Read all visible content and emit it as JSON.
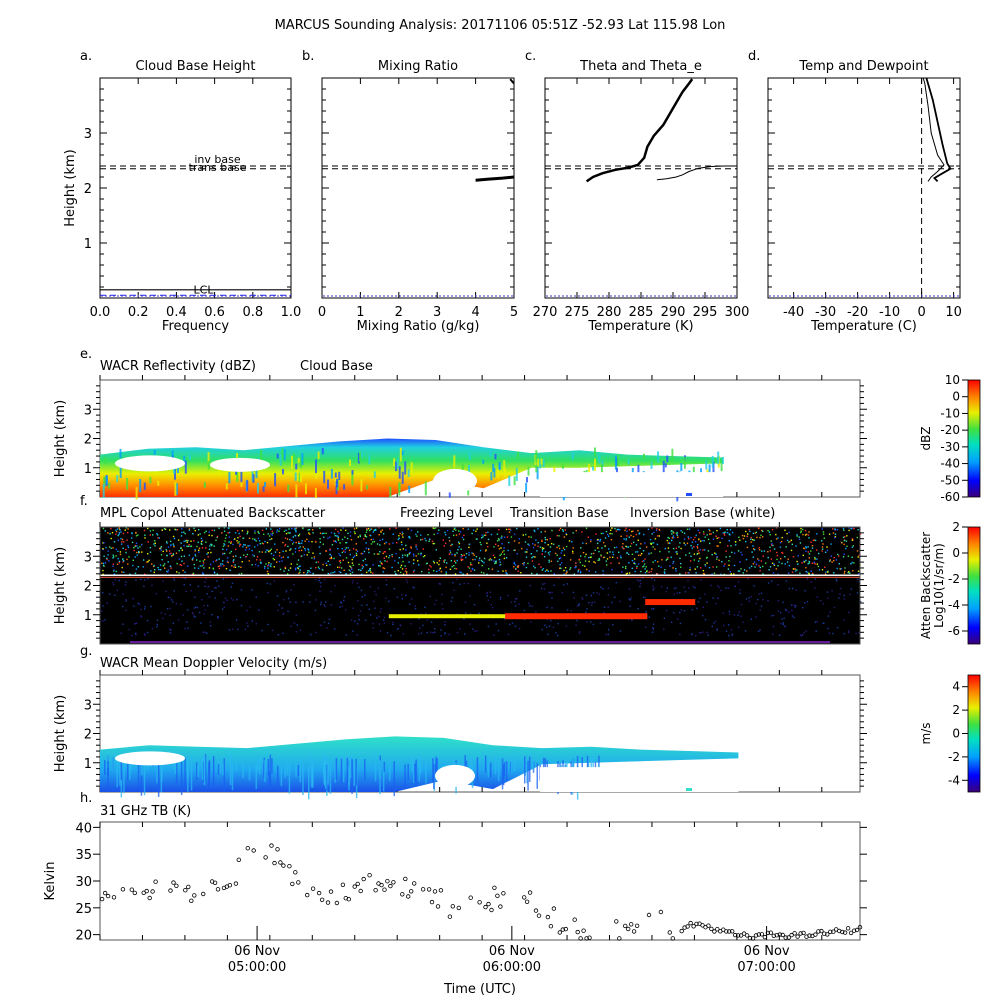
{
  "figure": {
    "title": "MARCUS Sounding Analysis: 20171106 05:51Z   -52.93 Lat  115.98 Lon"
  },
  "chart_data": [
    {
      "id": "a",
      "panel_letter": "a.",
      "type": "line",
      "title": "Cloud Base Height",
      "xlabel": "Frequency",
      "ylabel": "Height (km)",
      "xlim": [
        0,
        1
      ],
      "ylim": [
        0,
        4
      ],
      "xticks": [
        "0.0",
        "0.2",
        "0.4",
        "0.6",
        "0.8",
        "1.0"
      ],
      "yticks": [
        "1",
        "2",
        "3"
      ],
      "hlines": [
        {
          "label": "inv base",
          "y": 2.4,
          "style": "dashed"
        },
        {
          "label": "trans base",
          "y": 2.35,
          "style": "dashed"
        },
        {
          "label": "LCL",
          "y": 0.05,
          "style": "dashed",
          "color": "#2222ee"
        }
      ],
      "series": [
        {
          "values": [
            [
              0.0,
              0.15
            ],
            [
              1.0,
              0.15
            ]
          ],
          "color": "#000000"
        }
      ]
    },
    {
      "id": "b",
      "panel_letter": "b.",
      "type": "line",
      "title": "Mixing Ratio",
      "xlabel": "Mixing Ratio (g/kg)",
      "ylabel": "",
      "xlim": [
        0,
        5
      ],
      "ylim": [
        0,
        4
      ],
      "xticks": [
        "0",
        "1",
        "2",
        "3",
        "4",
        "5"
      ],
      "yticks": [],
      "hlines": [
        {
          "y": 2.4,
          "style": "dashed"
        },
        {
          "y": 2.35,
          "style": "dashed"
        }
      ],
      "series": [
        {
          "values": [
            [
              4.0,
              2.14
            ],
            [
              4.3,
              2.16
            ],
            [
              4.7,
              2.18
            ],
            [
              5.0,
              2.2
            ]
          ],
          "color": "#000000",
          "width": 3
        },
        {
          "values": [
            [
              4.9,
              3.98
            ],
            [
              5.0,
              3.9
            ]
          ],
          "color": "#000000",
          "width": 2
        }
      ]
    },
    {
      "id": "c",
      "panel_letter": "c.",
      "type": "line",
      "title": "Theta and Theta_e",
      "xlabel": "Temperature (K)",
      "ylabel": "",
      "xlim": [
        270,
        300
      ],
      "ylim": [
        0,
        4
      ],
      "xticks": [
        "270",
        "275",
        "280",
        "285",
        "290",
        "295",
        "300"
      ],
      "yticks": [],
      "hlines": [
        {
          "y": 2.4,
          "style": "dashed"
        },
        {
          "y": 2.35,
          "style": "dashed"
        }
      ],
      "series": [
        {
          "name": "Theta_e",
          "values": [
            [
              276.5,
              2.12
            ],
            [
              277.5,
              2.2
            ],
            [
              279,
              2.27
            ],
            [
              281,
              2.33
            ],
            [
              283,
              2.37
            ],
            [
              284.5,
              2.42
            ],
            [
              285.5,
              2.55
            ],
            [
              286,
              2.75
            ],
            [
              287,
              2.95
            ],
            [
              288.5,
              3.15
            ],
            [
              289.5,
              3.35
            ],
            [
              290.5,
              3.55
            ],
            [
              291.5,
              3.75
            ],
            [
              292.5,
              3.9
            ],
            [
              293,
              3.98
            ]
          ],
          "color": "#000000",
          "width": 2.5
        },
        {
          "name": "Theta",
          "values": [
            [
              287.5,
              2.15
            ],
            [
              289,
              2.17
            ],
            [
              290.5,
              2.2
            ],
            [
              291.5,
              2.24
            ],
            [
              292.5,
              2.3
            ],
            [
              294,
              2.36
            ],
            [
              296,
              2.39
            ],
            [
              298,
              2.4
            ],
            [
              300,
              2.4
            ]
          ],
          "color": "#000000",
          "width": 1
        }
      ]
    },
    {
      "id": "d",
      "panel_letter": "d.",
      "type": "line",
      "title": "Temp and Dewpoint",
      "xlabel": "Temperature (C)",
      "ylabel": "",
      "xlim": [
        -48,
        12
      ],
      "ylim": [
        0,
        4
      ],
      "xticks": [
        "-40",
        "-30",
        "-20",
        "-10",
        "0",
        "10"
      ],
      "yticks": [],
      "hlines": [
        {
          "y": 2.4,
          "style": "dashed"
        },
        {
          "y": 2.35,
          "style": "dashed"
        }
      ],
      "vlines": [
        {
          "x": 0,
          "style": "dashed"
        }
      ],
      "series": [
        {
          "name": "Temp",
          "values": [
            [
              5,
              2.12
            ],
            [
              4,
              2.18
            ],
            [
              6,
              2.25
            ],
            [
              9,
              2.35
            ],
            [
              8,
              2.45
            ],
            [
              6.5,
              2.8
            ],
            [
              5,
              3.2
            ],
            [
              3.5,
              3.6
            ],
            [
              2,
              3.9
            ],
            [
              1.5,
              4.0
            ]
          ],
          "color": "#000000",
          "width": 1.8
        },
        {
          "name": "Dewpoint",
          "values": [
            [
              2,
              2.12
            ],
            [
              3,
              2.2
            ],
            [
              5,
              2.3
            ],
            [
              7,
              2.42
            ],
            [
              5,
              2.6
            ],
            [
              3,
              3.0
            ],
            [
              2,
              3.5
            ],
            [
              1,
              3.9
            ],
            [
              0.5,
              4.0
            ]
          ],
          "color": "#000000",
          "width": 1
        }
      ]
    },
    {
      "id": "e",
      "panel_letter": "e.",
      "type": "heatmap",
      "title": "WACR Reflectivity (dBZ)",
      "legend": [
        "Cloud Base"
      ],
      "ylabel": "Height (km)",
      "ylim": [
        0,
        4
      ],
      "yticks": [
        "1",
        "2",
        "3"
      ],
      "colorbar": {
        "label": "dBZ",
        "range": [
          -60,
          10
        ],
        "ticks": [
          "10",
          "0",
          "-10",
          "-20",
          "-30",
          "-40",
          "-50",
          "-60"
        ]
      },
      "layer": {
        "top_km": [
          1.45,
          1.65,
          1.7,
          1.6,
          1.75,
          1.9,
          2.0,
          1.95,
          1.7,
          1.5,
          1.6,
          1.45,
          1.4,
          1.35
        ],
        "bottom_km": [
          0,
          0,
          0,
          0,
          0,
          0,
          0,
          0.6,
          0.3,
          1.0,
          1.0,
          1.05,
          1.1,
          1.15
        ],
        "end_fraction": 0.82
      }
    },
    {
      "id": "f",
      "panel_letter": "f.",
      "type": "heatmap",
      "title": "MPL Copol Attenuated Backscatter",
      "legend": [
        "Freezing Level",
        "Transition Base",
        "Inversion Base (white)"
      ],
      "legend_colors": [
        "#87cefa",
        "#ff6347",
        "#000000"
      ],
      "ylabel": "Height (km)",
      "ylim": [
        0,
        4
      ],
      "yticks": [
        "1",
        "2",
        "3"
      ],
      "colorbar": {
        "label": "Atten Backscatter\nLog10(1/sr/m)",
        "range": [
          -7,
          2
        ],
        "ticks": [
          "2",
          "0",
          "-2",
          "-4",
          "-6"
        ]
      },
      "inversion_km": 2.35,
      "cloud_layer": {
        "start_fraction": 0.38,
        "end_fraction": 0.72,
        "height_km": 0.95
      }
    },
    {
      "id": "g",
      "panel_letter": "g.",
      "type": "heatmap",
      "title": "WACR Mean Doppler Velocity (m/s)",
      "ylabel": "Height (km)",
      "ylim": [
        0,
        4
      ],
      "yticks": [
        "1",
        "2",
        "3"
      ],
      "colorbar": {
        "label": "m/s",
        "range": [
          -5,
          5
        ],
        "ticks": [
          "4",
          "2",
          "0",
          "-2",
          "-4"
        ]
      }
    },
    {
      "id": "h",
      "panel_letter": "h.",
      "type": "scatter",
      "title": "31 GHz TB (K)",
      "xlabel": "Time (UTC)",
      "ylabel": "Kelvin",
      "ylim": [
        19,
        41
      ],
      "yticks": [
        "20",
        "25",
        "30",
        "35",
        "40"
      ],
      "xticks": [
        {
          "line1": "06 Nov",
          "line2": "05:00:00"
        },
        {
          "line1": "06 Nov",
          "line2": "06:00:00"
        },
        {
          "line1": "06 Nov",
          "line2": "07:00:00"
        }
      ],
      "time_range_min": [
        263,
        442
      ],
      "tick_times_min": [
        300,
        360,
        420
      ],
      "trend": [
        [
          263,
          27
        ],
        [
          270,
          29.5
        ],
        [
          278,
          28
        ],
        [
          284,
          27
        ],
        [
          290,
          29
        ],
        [
          296,
          32
        ],
        [
          300,
          38
        ],
        [
          304,
          35
        ],
        [
          308,
          31
        ],
        [
          314,
          28
        ],
        [
          320,
          27.5
        ],
        [
          326,
          29
        ],
        [
          332,
          28
        ],
        [
          340,
          29
        ],
        [
          346,
          24
        ],
        [
          352,
          26
        ],
        [
          358,
          27
        ],
        [
          364,
          26
        ],
        [
          370,
          23
        ],
        [
          376,
          21
        ],
        [
          382,
          20
        ],
        [
          388,
          22
        ],
        [
          394,
          24
        ],
        [
          398,
          21
        ],
        [
          404,
          22
        ],
        [
          410,
          20.5
        ],
        [
          416,
          19.5
        ],
        [
          422,
          20
        ],
        [
          428,
          19.8
        ],
        [
          436,
          20.5
        ],
        [
          442,
          21
        ]
      ]
    }
  ]
}
